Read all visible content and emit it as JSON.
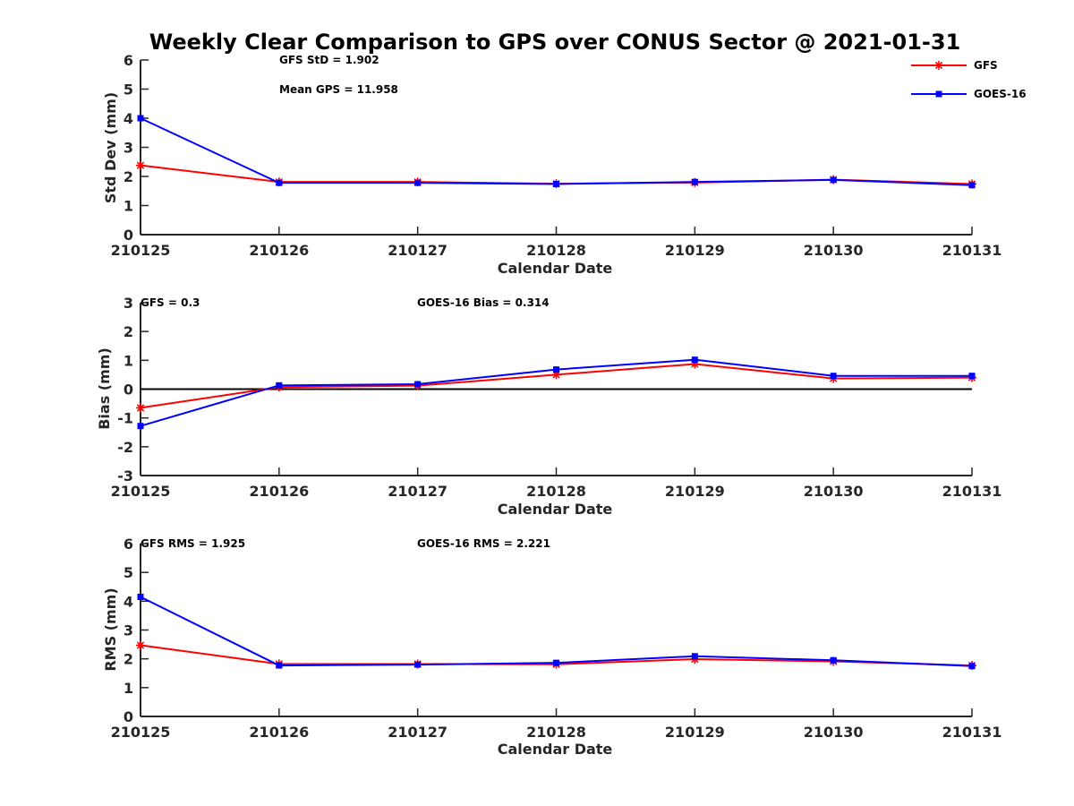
{
  "title": "Weekly Clear Comparison to GPS over CONUS Sector @ 2021-01-31",
  "legend": [
    {
      "name": "GFS",
      "color": "#ff0000",
      "marker": "star"
    },
    {
      "name": "GOES-16",
      "color": "#0000ff",
      "marker": "square"
    }
  ],
  "chart_data": [
    {
      "type": "line",
      "id": "stddev",
      "categories": [
        "210125",
        "210126",
        "210127",
        "210128",
        "210129",
        "210130",
        "210131"
      ],
      "series": [
        {
          "name": "GFS",
          "color": "#ff0000",
          "values": [
            2.38,
            1.81,
            1.81,
            1.75,
            1.79,
            1.89,
            1.74
          ]
        },
        {
          "name": "GOES-16",
          "color": "#0000ff",
          "values": [
            4.0,
            1.78,
            1.78,
            1.74,
            1.81,
            1.88,
            1.7
          ]
        }
      ],
      "xlabel": "Calendar Date",
      "ylabel": "Std Dev (mm)",
      "ylim": [
        0,
        6
      ],
      "yticks": [
        "0",
        "1",
        "2",
        "3",
        "4",
        "5",
        "6"
      ],
      "zero_line": false,
      "annotations": [
        "GFS StD = 1.902",
        "Mean GPS = 11.958"
      ]
    },
    {
      "type": "line",
      "id": "bias",
      "categories": [
        "210125",
        "210126",
        "210127",
        "210128",
        "210129",
        "210130",
        "210131"
      ],
      "series": [
        {
          "name": "GFS",
          "color": "#ff0000",
          "values": [
            -0.65,
            0.07,
            0.12,
            0.5,
            0.87,
            0.37,
            0.4
          ]
        },
        {
          "name": "GOES-16",
          "color": "#0000ff",
          "values": [
            -1.28,
            0.13,
            0.17,
            0.68,
            1.02,
            0.46,
            0.46
          ]
        }
      ],
      "xlabel": "Calendar Date",
      "ylabel": "Bias (mm)",
      "ylim": [
        -3,
        3
      ],
      "yticks": [
        "-3",
        "-2",
        "-1",
        "0",
        "1",
        "2",
        "3"
      ],
      "zero_line": true,
      "annotations": [
        "GFS = 0.3",
        "GOES-16 Bias  = 0.314"
      ]
    },
    {
      "type": "line",
      "id": "rms",
      "categories": [
        "210125",
        "210126",
        "210127",
        "210128",
        "210129",
        "210130",
        "210131"
      ],
      "series": [
        {
          "name": "GFS",
          "color": "#ff0000",
          "values": [
            2.47,
            1.82,
            1.82,
            1.81,
            1.99,
            1.91,
            1.77
          ]
        },
        {
          "name": "GOES-16",
          "color": "#0000ff",
          "values": [
            4.15,
            1.77,
            1.8,
            1.86,
            2.09,
            1.95,
            1.75
          ]
        }
      ],
      "xlabel": "Calendar Date",
      "ylabel": "RMS (mm)",
      "ylim": [
        0,
        6
      ],
      "yticks": [
        "0",
        "1",
        "2",
        "3",
        "4",
        "5",
        "6"
      ],
      "zero_line": false,
      "annotations": [
        "GFS RMS = 1.925",
        "GOES-16 RMS = 2.221"
      ]
    }
  ]
}
